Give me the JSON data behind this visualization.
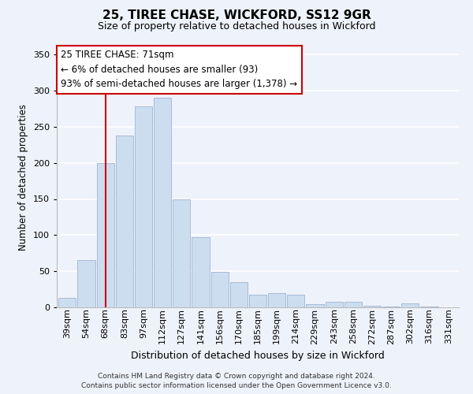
{
  "title": "25, TIREE CHASE, WICKFORD, SS12 9GR",
  "subtitle": "Size of property relative to detached houses in Wickford",
  "xlabel": "Distribution of detached houses by size in Wickford",
  "ylabel": "Number of detached properties",
  "categories": [
    "39sqm",
    "54sqm",
    "68sqm",
    "83sqm",
    "97sqm",
    "112sqm",
    "127sqm",
    "141sqm",
    "156sqm",
    "170sqm",
    "185sqm",
    "199sqm",
    "214sqm",
    "229sqm",
    "243sqm",
    "258sqm",
    "272sqm",
    "287sqm",
    "302sqm",
    "316sqm",
    "331sqm"
  ],
  "values": [
    13,
    65,
    200,
    238,
    278,
    290,
    150,
    97,
    49,
    35,
    18,
    20,
    18,
    4,
    8,
    8,
    2,
    1,
    5,
    1,
    0
  ],
  "bar_color": "#ccddf0",
  "bar_edge_color": "#aabbd8",
  "vline_x": 2,
  "vline_color": "#cc0000",
  "annotation_text": "25 TIREE CHASE: 71sqm\n← 6% of detached houses are smaller (93)\n93% of semi-detached houses are larger (1,378) →",
  "annotation_box_facecolor": "#ffffff",
  "annotation_box_edgecolor": "#cc0000",
  "ylim": [
    0,
    360
  ],
  "yticks": [
    0,
    50,
    100,
    150,
    200,
    250,
    300,
    350
  ],
  "footer_line1": "Contains HM Land Registry data © Crown copyright and database right 2024.",
  "footer_line2": "Contains public sector information licensed under the Open Government Licence v3.0.",
  "background_color": "#eef2fa",
  "grid_color": "#ffffff",
  "title_fontsize": 11,
  "subtitle_fontsize": 9,
  "ylabel_fontsize": 8.5,
  "xlabel_fontsize": 9,
  "tick_fontsize": 8,
  "annotation_fontsize": 8.5,
  "footer_fontsize": 6.5
}
